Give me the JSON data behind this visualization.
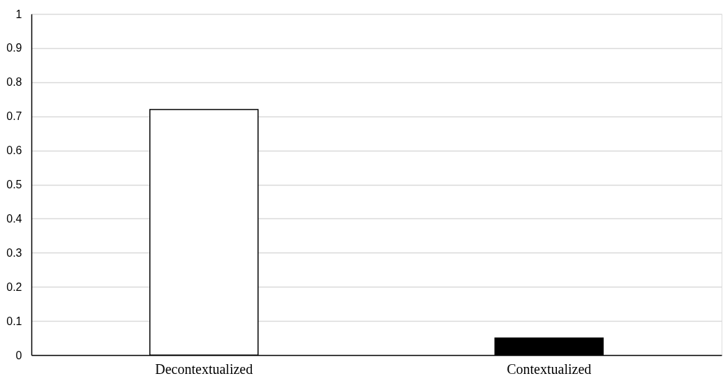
{
  "chart_data": {
    "type": "bar",
    "categories": [
      "Decontextualized",
      "Contextualized"
    ],
    "values": [
      0.72,
      0.05
    ],
    "colors": [
      "#ffffff",
      "#000000"
    ],
    "ylim": [
      0,
      1
    ],
    "yticks": [
      0,
      0.1,
      0.2,
      0.3,
      0.4,
      0.5,
      0.6,
      0.7,
      0.8,
      0.9,
      1
    ],
    "grid": "y"
  }
}
